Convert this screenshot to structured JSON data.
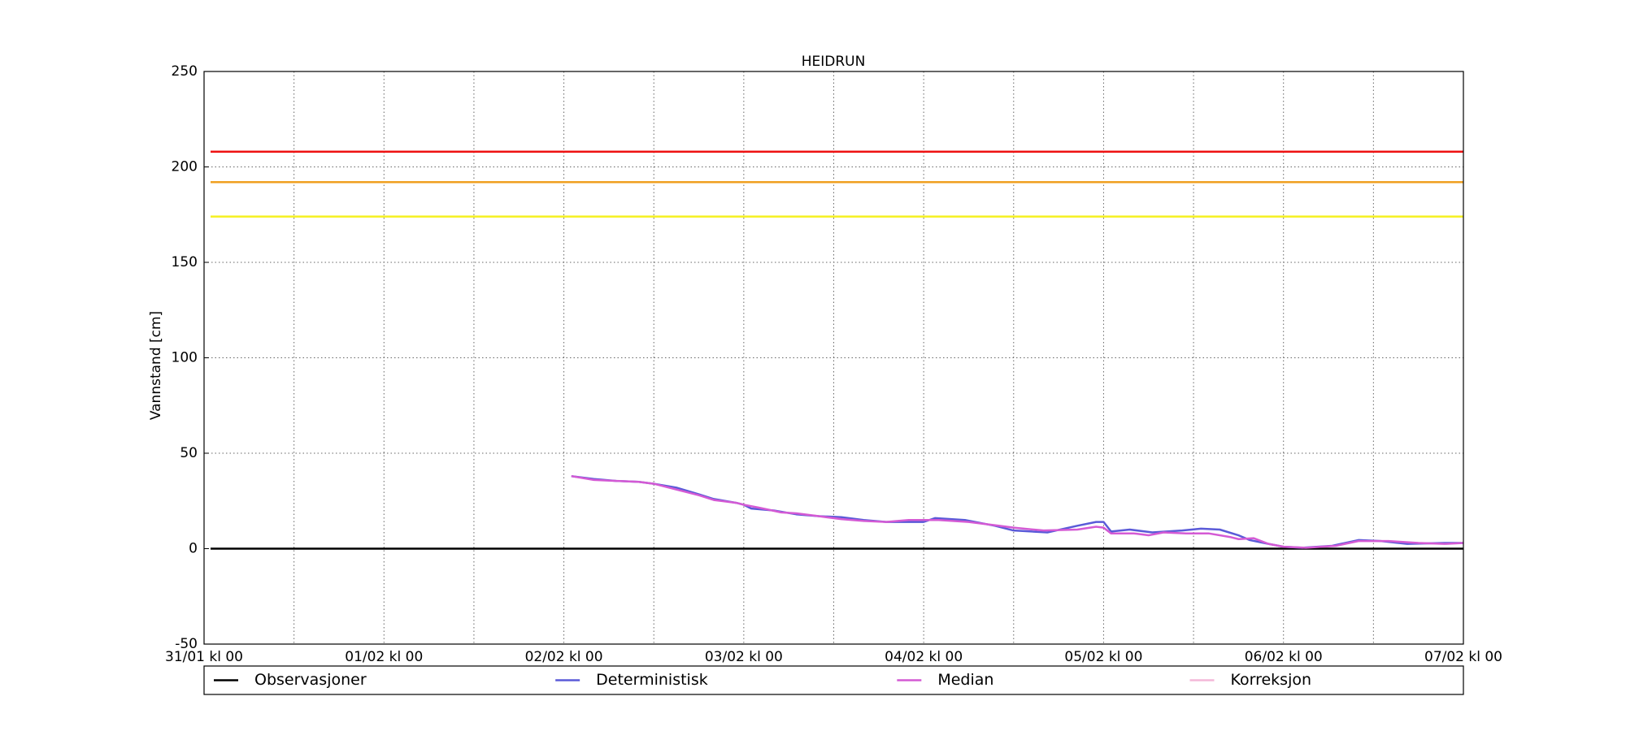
{
  "chart_data": {
    "type": "line",
    "title": "HEIDRUN",
    "y_label": "Vannstand [cm]",
    "xlim": [
      0,
      168
    ],
    "xticks": [
      {
        "value": 0,
        "label": "31/01 kl 00"
      },
      {
        "value": 24,
        "label": "01/02 kl 00"
      },
      {
        "value": 48,
        "label": "02/02 kl 00"
      },
      {
        "value": 72,
        "label": "03/02 kl 00"
      },
      {
        "value": 96,
        "label": "04/02 kl 00"
      },
      {
        "value": 120,
        "label": "05/02 kl 00"
      },
      {
        "value": 144,
        "label": "06/02 kl 00"
      },
      {
        "value": 168,
        "label": "07/02 kl 00"
      }
    ],
    "minor_xticks": [
      12,
      36,
      60,
      84,
      108,
      132,
      156
    ],
    "ylim": [
      -50,
      250
    ],
    "yticks": [
      -50,
      0,
      50,
      100,
      150,
      200,
      250
    ],
    "grid": true,
    "hlines": [
      {
        "value": 208,
        "color": "#ee1111"
      },
      {
        "value": 192,
        "color": "#f0a020"
      },
      {
        "value": 174,
        "color": "#f5f020"
      },
      {
        "value": 0,
        "color": "#000000"
      }
    ],
    "series": [
      {
        "name": "Observasjoner",
        "color": "#000000",
        "x": [],
        "values": []
      },
      {
        "name": "Deterministisk",
        "color": "#5a5ad8",
        "x": [
          49,
          52,
          55,
          58,
          60,
          63,
          66,
          68,
          71,
          72,
          73,
          76,
          79,
          82,
          85,
          88,
          91,
          94,
          96,
          97.5,
          101.5,
          105.5,
          108,
          112.5,
          116.5,
          119,
          120,
          121,
          123.5,
          126.5,
          130.5,
          133,
          135.5,
          138,
          139.5,
          142,
          144,
          146.5,
          150.5,
          154,
          157,
          160.5,
          165.5,
          168
        ],
        "values": [
          38,
          36.5,
          35.5,
          35,
          34,
          32,
          28.5,
          26,
          24,
          23,
          21,
          20,
          18,
          17,
          16.5,
          15,
          14,
          14,
          14,
          16,
          15,
          12,
          9.5,
          8.5,
          12,
          14,
          14,
          9,
          10,
          8.5,
          9.5,
          10.5,
          10,
          7,
          4.5,
          2.5,
          1,
          0.5,
          1.5,
          4.5,
          4,
          2.5,
          3,
          3
        ]
      },
      {
        "name": "Median",
        "color": "#d45ad4",
        "x": [
          49,
          52,
          55,
          58,
          60,
          63,
          66,
          68,
          71,
          72,
          74,
          77,
          79,
          82,
          85,
          88,
          91,
          94,
          96,
          98,
          102,
          106,
          108,
          112,
          116.5,
          119,
          120,
          121,
          124,
          126,
          128,
          131,
          134,
          137,
          138,
          140,
          142,
          144,
          147,
          151,
          154,
          158,
          162,
          165.5,
          168
        ],
        "values": [
          38,
          36,
          35.5,
          35,
          34,
          31,
          28,
          25.5,
          24,
          23,
          21.5,
          19,
          18.5,
          17,
          15.5,
          14.5,
          14,
          15,
          15,
          15,
          14,
          12,
          11,
          9.5,
          10,
          11.5,
          11,
          8,
          8,
          7,
          8.5,
          8,
          8,
          6,
          5,
          5.5,
          2.5,
          1,
          0.5,
          1.5,
          4,
          4,
          3,
          2.5,
          3
        ]
      },
      {
        "name": "Korreksjon",
        "color": "#f4b8d8",
        "x": [],
        "values": []
      }
    ]
  }
}
